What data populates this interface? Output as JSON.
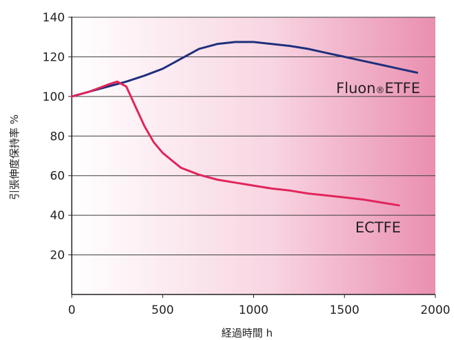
{
  "chart_data": {
    "type": "line",
    "title": "",
    "xlabel": "経過時間 h",
    "ylabel": "引張伸度保持率 %",
    "xlim": [
      0,
      2000
    ],
    "ylim": [
      0,
      140
    ],
    "xticks": [
      0,
      500,
      1000,
      1500,
      2000
    ],
    "yticks": [
      20,
      40,
      60,
      80,
      100,
      120,
      140
    ],
    "grid": "horizontal",
    "legend": "inline labels",
    "background": "white-to-pink horizontal gradient",
    "series": [
      {
        "name": "Fluon®ETFE",
        "label_main": "Fluon",
        "label_mark": "®",
        "label_tail": "ETFE",
        "color": "#1f2f7c",
        "x": [
          0,
          100,
          200,
          300,
          400,
          500,
          600,
          700,
          800,
          900,
          1000,
          1100,
          1200,
          1300,
          1400,
          1500,
          1600,
          1700,
          1800,
          1900
        ],
        "y": [
          100,
          102.5,
          105,
          107.5,
          110.5,
          114,
          119,
          124,
          126.5,
          127.5,
          127.5,
          126.5,
          125.5,
          124,
          122,
          120,
          118,
          116,
          114,
          112
        ]
      },
      {
        "name": "ECTFE",
        "label_main": "ECTFE",
        "label_mark": "",
        "label_tail": "",
        "color": "#e1245a",
        "x": [
          0,
          100,
          200,
          250,
          300,
          350,
          400,
          450,
          500,
          600,
          700,
          800,
          900,
          1000,
          1100,
          1200,
          1300,
          1400,
          1500,
          1600,
          1700,
          1800
        ],
        "y": [
          100,
          102.5,
          106,
          107.5,
          105,
          95,
          85,
          77,
          71.5,
          64,
          60.5,
          58,
          56.5,
          55,
          53.5,
          52.5,
          51,
          50,
          49,
          48,
          46.5,
          45
        ]
      }
    ]
  }
}
